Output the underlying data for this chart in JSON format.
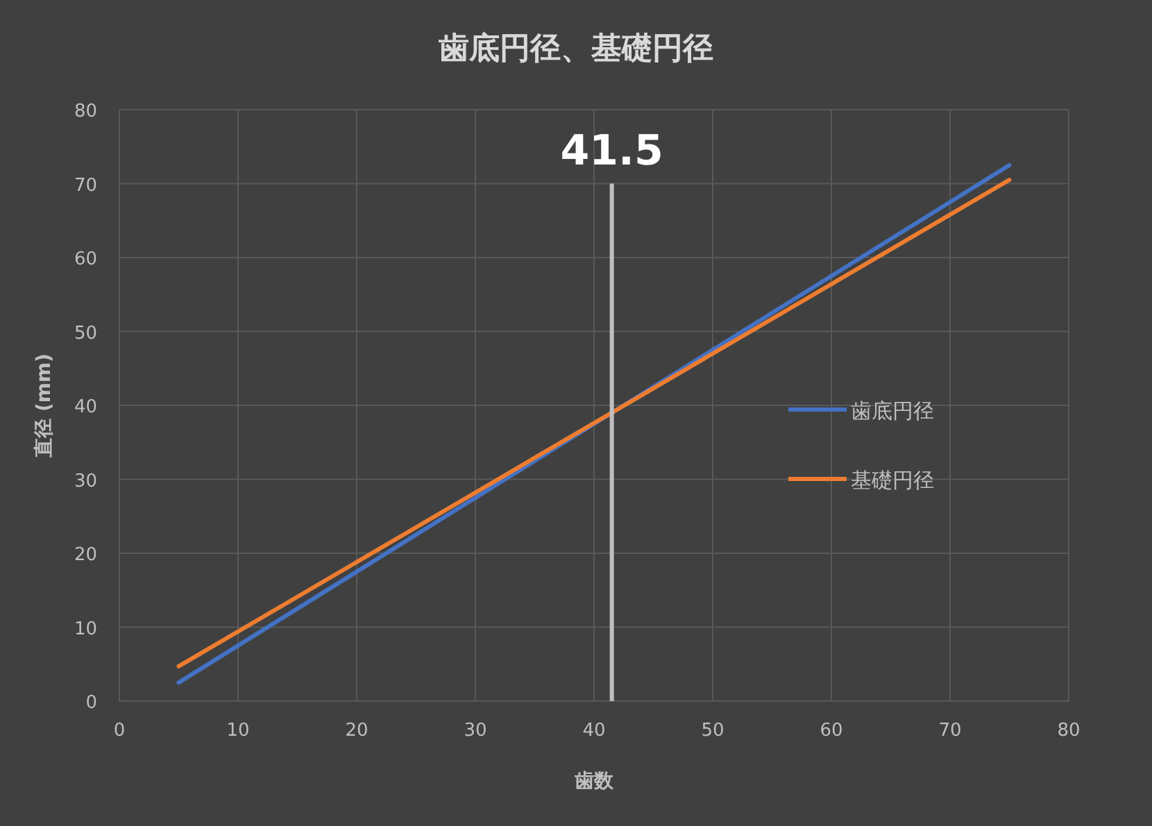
{
  "chart_data": {
    "type": "line",
    "title": "歯底円径、基礎円径",
    "xlabel": "歯数",
    "ylabel": "直径 (mm)",
    "x": [
      5,
      75
    ],
    "series": [
      {
        "name": "歯底円径",
        "color": "#4472c4",
        "values": [
          2.5,
          72.5
        ]
      },
      {
        "name": "基礎円径",
        "color": "#ed7d31",
        "values": [
          4.7,
          70.5
        ]
      }
    ],
    "xlim": [
      0,
      80
    ],
    "xticks": [
      0,
      10,
      20,
      30,
      40,
      50,
      60,
      70,
      80
    ],
    "ylim": [
      0,
      80
    ],
    "yticks": [
      0,
      10,
      20,
      30,
      40,
      50,
      60,
      70,
      80
    ],
    "grid": true,
    "legend": "right",
    "marker": "none",
    "line_style": "solid",
    "ref_lines": [
      {
        "axis": "x",
        "value": 41.5,
        "label": "41.5",
        "color": "#bfbfbf"
      }
    ]
  }
}
